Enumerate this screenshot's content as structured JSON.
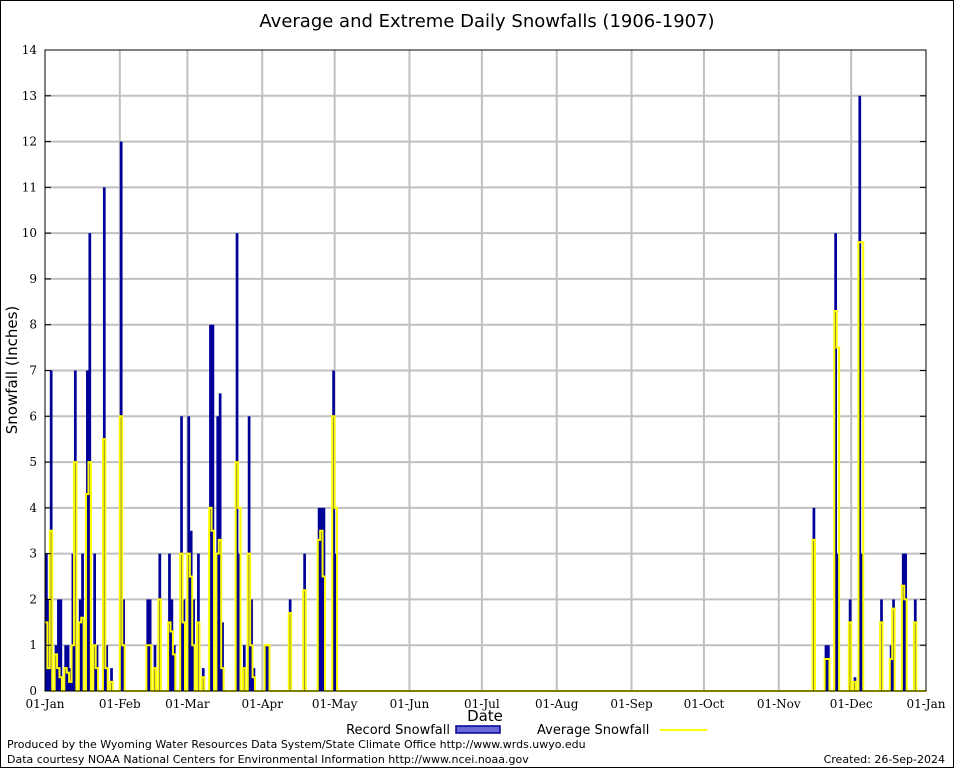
{
  "chart_data": {
    "type": "bar",
    "title": "Average and Extreme Daily Snowfalls (1906-1907)",
    "xlabel": "Date",
    "ylabel": "Snowfall (Inches)",
    "ylim": [
      0,
      14
    ],
    "yticks": [
      "0",
      "1",
      "2",
      "3",
      "4",
      "5",
      "6",
      "7",
      "8",
      "9",
      "10",
      "11",
      "12",
      "13",
      "14"
    ],
    "xticks": [
      "01-Jan",
      "01-Feb",
      "01-Mar",
      "01-Apr",
      "01-May",
      "01-Jun",
      "01-Jul",
      "01-Aug",
      "01-Sep",
      "01-Oct",
      "01-Nov",
      "01-Dec",
      "01-Jan"
    ],
    "xtick_days": [
      0,
      31,
      59,
      90,
      120,
      151,
      181,
      212,
      243,
      273,
      304,
      334,
      365
    ],
    "grid": true,
    "legend": {
      "position": "bottom",
      "entries": [
        "Record Snowfall",
        "Average Snowfall"
      ]
    },
    "series_colors": {
      "record": "#000099",
      "average": "#ffff00"
    },
    "points": [
      [
        0,
        3,
        1.5
      ],
      [
        1,
        2,
        0.5
      ],
      [
        2,
        7,
        3.5
      ],
      [
        4,
        1,
        0.8
      ],
      [
        5,
        2,
        0.5
      ],
      [
        6,
        2,
        0.3
      ],
      [
        8,
        1,
        0.5
      ],
      [
        9,
        1,
        0.4
      ],
      [
        10,
        0.5,
        0.2
      ],
      [
        11,
        3,
        1.0
      ],
      [
        12,
        7,
        5.0
      ],
      [
        14,
        2,
        1.5
      ],
      [
        15,
        3,
        1.6
      ],
      [
        17,
        7,
        4.3
      ],
      [
        18,
        10,
        5.0
      ],
      [
        20,
        3,
        1.0
      ],
      [
        21,
        1,
        0.5
      ],
      [
        24,
        11,
        5.5
      ],
      [
        25,
        1,
        0.5
      ],
      [
        27,
        0.5,
        0.2
      ],
      [
        31,
        12,
        6.0
      ],
      [
        32,
        2,
        1.0
      ],
      [
        42,
        2,
        1.0
      ],
      [
        43,
        2,
        1.0
      ],
      [
        45,
        1,
        0.5
      ],
      [
        47,
        3,
        2.0
      ],
      [
        51,
        3,
        1.5
      ],
      [
        52,
        2,
        1.3
      ],
      [
        53,
        1,
        0.8
      ],
      [
        56,
        6,
        3.0
      ],
      [
        57,
        2,
        1.5
      ],
      [
        59,
        6,
        3.0
      ],
      [
        60,
        3.5,
        2.5
      ],
      [
        61,
        2,
        1.0
      ],
      [
        63,
        3,
        1.5
      ],
      [
        65,
        0.5,
        0.3
      ],
      [
        68,
        8,
        4.0
      ],
      [
        69,
        8,
        3.5
      ],
      [
        71,
        6,
        3.0
      ],
      [
        72,
        6.5,
        3.3
      ],
      [
        73,
        1.5,
        0.5
      ],
      [
        79,
        10,
        5.0
      ],
      [
        80,
        3,
        4.0
      ],
      [
        82,
        1,
        0.5
      ],
      [
        84,
        6,
        3.0
      ],
      [
        85,
        2,
        1.0
      ],
      [
        86,
        0.5,
        0.3
      ],
      [
        91,
        1,
        1.0
      ],
      [
        92,
        1,
        1.0
      ],
      [
        101,
        2,
        1.7
      ],
      [
        107,
        3,
        2.2
      ],
      [
        113,
        4,
        3.3
      ],
      [
        114,
        4,
        3.5
      ],
      [
        115,
        4,
        2.5
      ],
      [
        119,
        7,
        6.0
      ],
      [
        120,
        3,
        4.0
      ],
      [
        318,
        4,
        3.3
      ],
      [
        323,
        1,
        0.7
      ],
      [
        324,
        1,
        0.7
      ],
      [
        327,
        10,
        8.3
      ],
      [
        328,
        3,
        7.5
      ],
      [
        333,
        2,
        1.5
      ],
      [
        335,
        0.3,
        0.2
      ],
      [
        337,
        13,
        9.8
      ],
      [
        338,
        3,
        9.8
      ],
      [
        346,
        2,
        1.5
      ],
      [
        350,
        1,
        0.7
      ],
      [
        351,
        2,
        1.8
      ],
      [
        355,
        3,
        2.3
      ],
      [
        356,
        3,
        2.0
      ],
      [
        360,
        2,
        1.5
      ]
    ]
  },
  "legend": {
    "record_label": "Record Snowfall",
    "average_label": "Average Snowfall"
  },
  "footer": {
    "produced_by": "Produced by the Wyoming Water Resources Data System/State Climate Office http://www.wrds.uwyo.edu",
    "data_courtesy": "Data courtesy NOAA National Centers for Environmental Information http://www.ncei.noaa.gov",
    "created": "Created: 26-Sep-2024"
  }
}
